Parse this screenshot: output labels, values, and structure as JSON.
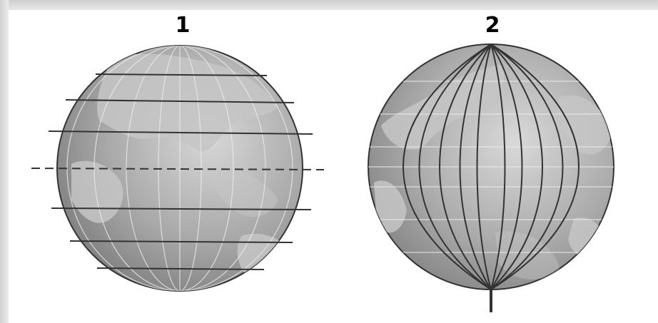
{
  "figure": {
    "globes": [
      {
        "label": "1"
      },
      {
        "label": "2"
      }
    ]
  }
}
